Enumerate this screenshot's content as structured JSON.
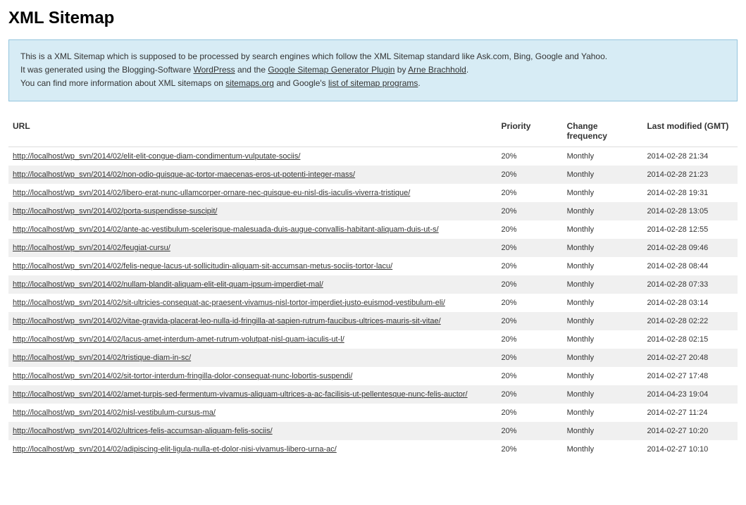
{
  "page_title": "XML Sitemap",
  "intro": {
    "line1_before": "This is a XML Sitemap which is supposed to be processed by search engines which follow the XML Sitemap standard like Ask.com, Bing, Google and Yahoo.",
    "line2_prefix": "It was generated using the Blogging-Software ",
    "wordpress": "WordPress",
    "line2_mid": " and the ",
    "plugin": "Google Sitemap Generator Plugin",
    "line2_by": " by ",
    "author": "Arne Brachhold",
    "line2_end": ".",
    "line3_prefix": "You can find more information about XML sitemaps on ",
    "sitemaps_org": "sitemaps.org",
    "line3_mid": " and Google's ",
    "sitemap_programs": "list of sitemap programs",
    "line3_end": "."
  },
  "headers": {
    "url": "URL",
    "priority": "Priority",
    "frequency": "Change frequency",
    "modified": "Last modified (GMT)"
  },
  "rows": [
    {
      "url": "http://localhost/wp_svn/2014/02/elit-elit-congue-diam-condimentum-vulputate-sociis/",
      "priority": "20%",
      "freq": "Monthly",
      "mod": "2014-02-28 21:34"
    },
    {
      "url": "http://localhost/wp_svn/2014/02/non-odio-quisque-ac-tortor-maecenas-eros-ut-potenti-integer-mass/",
      "priority": "20%",
      "freq": "Monthly",
      "mod": "2014-02-28 21:23"
    },
    {
      "url": "http://localhost/wp_svn/2014/02/libero-erat-nunc-ullamcorper-ornare-nec-quisque-eu-nisl-dis-iaculis-viverra-tristique/",
      "priority": "20%",
      "freq": "Monthly",
      "mod": "2014-02-28 19:31"
    },
    {
      "url": "http://localhost/wp_svn/2014/02/porta-suspendisse-suscipit/",
      "priority": "20%",
      "freq": "Monthly",
      "mod": "2014-02-28 13:05"
    },
    {
      "url": "http://localhost/wp_svn/2014/02/ante-ac-vestibulum-scelerisque-malesuada-duis-augue-convallis-habitant-aliquam-duis-ut-s/",
      "priority": "20%",
      "freq": "Monthly",
      "mod": "2014-02-28 12:55"
    },
    {
      "url": "http://localhost/wp_svn/2014/02/feugiat-cursu/",
      "priority": "20%",
      "freq": "Monthly",
      "mod": "2014-02-28 09:46"
    },
    {
      "url": "http://localhost/wp_svn/2014/02/felis-neque-lacus-ut-sollicitudin-aliquam-sit-accumsan-metus-sociis-tortor-lacu/",
      "priority": "20%",
      "freq": "Monthly",
      "mod": "2014-02-28 08:44"
    },
    {
      "url": "http://localhost/wp_svn/2014/02/nullam-blandit-aliquam-elit-elit-quam-ipsum-imperdiet-mal/",
      "priority": "20%",
      "freq": "Monthly",
      "mod": "2014-02-28 07:33"
    },
    {
      "url": "http://localhost/wp_svn/2014/02/sit-ultricies-consequat-ac-praesent-vivamus-nisl-tortor-imperdiet-justo-euismod-vestibulum-eli/",
      "priority": "20%",
      "freq": "Monthly",
      "mod": "2014-02-28 03:14"
    },
    {
      "url": "http://localhost/wp_svn/2014/02/vitae-gravida-placerat-leo-nulla-id-fringilla-at-sapien-rutrum-faucibus-ultrices-mauris-sit-vitae/",
      "priority": "20%",
      "freq": "Monthly",
      "mod": "2014-02-28 02:22"
    },
    {
      "url": "http://localhost/wp_svn/2014/02/lacus-amet-interdum-amet-rutrum-volutpat-nisl-quam-iaculis-ut-l/",
      "priority": "20%",
      "freq": "Monthly",
      "mod": "2014-02-28 02:15"
    },
    {
      "url": "http://localhost/wp_svn/2014/02/tristique-diam-in-sc/",
      "priority": "20%",
      "freq": "Monthly",
      "mod": "2014-02-27 20:48"
    },
    {
      "url": "http://localhost/wp_svn/2014/02/sit-tortor-interdum-fringilla-dolor-consequat-nunc-lobortis-suspendi/",
      "priority": "20%",
      "freq": "Monthly",
      "mod": "2014-02-27 17:48"
    },
    {
      "url": "http://localhost/wp_svn/2014/02/amet-turpis-sed-fermentum-vivamus-aliquam-ultrices-a-ac-facilisis-ut-pellentesque-nunc-felis-auctor/",
      "priority": "20%",
      "freq": "Monthly",
      "mod": "2014-04-23 19:04"
    },
    {
      "url": "http://localhost/wp_svn/2014/02/nisl-vestibulum-cursus-ma/",
      "priority": "20%",
      "freq": "Monthly",
      "mod": "2014-02-27 11:24"
    },
    {
      "url": "http://localhost/wp_svn/2014/02/ultrices-felis-accumsan-aliquam-felis-sociis/",
      "priority": "20%",
      "freq": "Monthly",
      "mod": "2014-02-27 10:20"
    },
    {
      "url": "http://localhost/wp_svn/2014/02/adipiscing-elit-ligula-nulla-et-dolor-nisi-vivamus-libero-urna-ac/",
      "priority": "20%",
      "freq": "Monthly",
      "mod": "2014-02-27 10:10"
    }
  ]
}
